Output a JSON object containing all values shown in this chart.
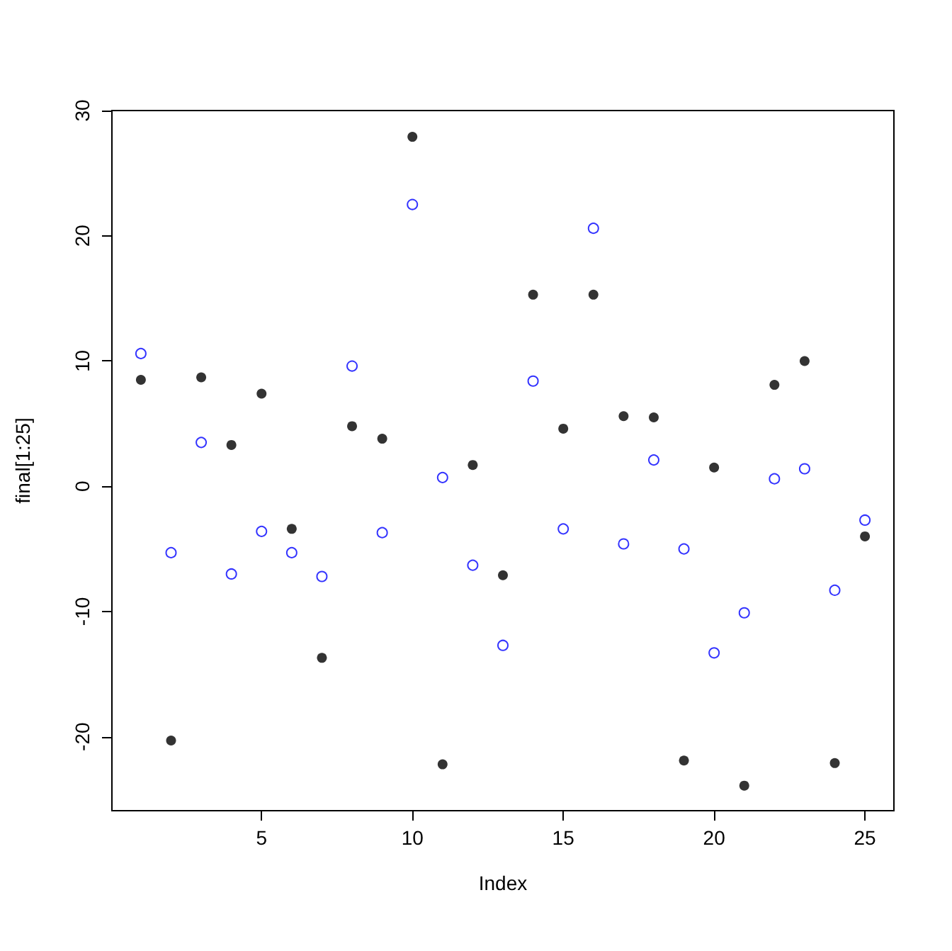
{
  "chart_data": {
    "type": "scatter",
    "xlabel": "Index",
    "ylabel": "final[1:25]",
    "x": [
      1,
      2,
      3,
      4,
      5,
      6,
      7,
      8,
      9,
      10,
      11,
      12,
      13,
      14,
      15,
      16,
      17,
      18,
      19,
      20,
      21,
      22,
      23,
      24,
      25
    ],
    "series": [
      {
        "color": "#000000",
        "values": [
          8.5,
          -20.3,
          8.7,
          3.3,
          7.4,
          -3.4,
          -13.7,
          4.8,
          3.8,
          27.9,
          -22.2,
          1.7,
          -7.1,
          15.3,
          4.6,
          15.3,
          5.6,
          5.5,
          -21.9,
          1.5,
          -23.9,
          8.1,
          10.0,
          -22.1,
          -4.0
        ]
      },
      {
        "color": "#0000ff",
        "values": [
          10.6,
          -5.3,
          3.5,
          -7.0,
          -3.6,
          -5.3,
          -7.2,
          9.6,
          -3.7,
          22.5,
          0.7,
          -6.3,
          -12.7,
          8.4,
          -3.4,
          20.6,
          -4.6,
          2.1,
          -5.0,
          -13.3,
          -10.1,
          0.6,
          1.4,
          -8.3,
          -2.7
        ]
      }
    ],
    "xlim": [
      0.04,
      25.96
    ],
    "ylim": [
      -25.9,
      30
    ],
    "xticks": [
      5,
      10,
      15,
      20,
      25
    ],
    "yticks": [
      -20,
      -10,
      0,
      10,
      20,
      30
    ],
    "grid": false,
    "marker": "circle"
  }
}
